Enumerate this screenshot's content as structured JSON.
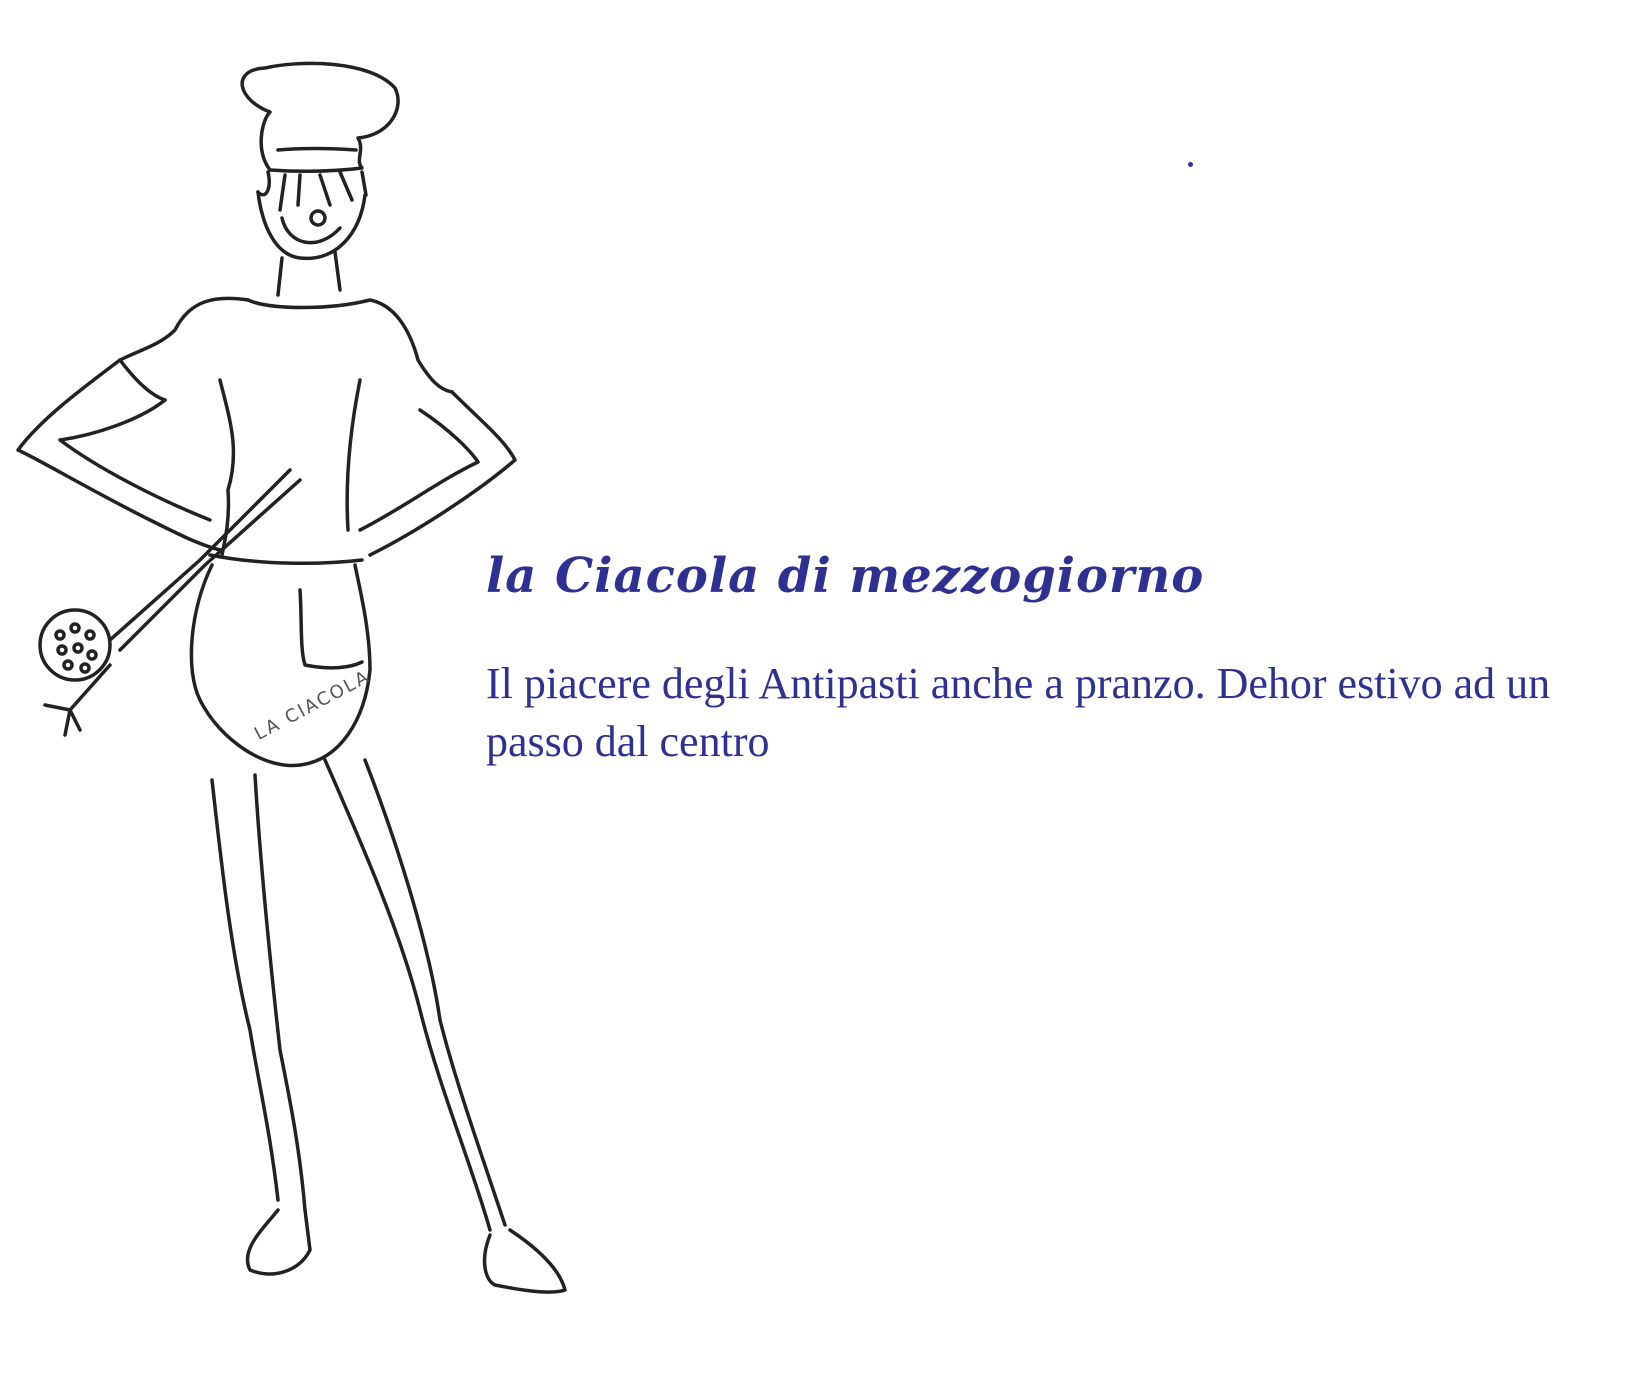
{
  "headline": "la Ciacola di mezzogiorno",
  "description": "Il piacere degli Antipasti anche a pranzo. Dehor estivo ad un passo dal centro",
  "illustration": {
    "icon": "chef-illustration",
    "apron_text": "LA CIACOLA"
  },
  "colors": {
    "text": "#2e3192",
    "ink": "#222222",
    "background": "#ffffff"
  }
}
